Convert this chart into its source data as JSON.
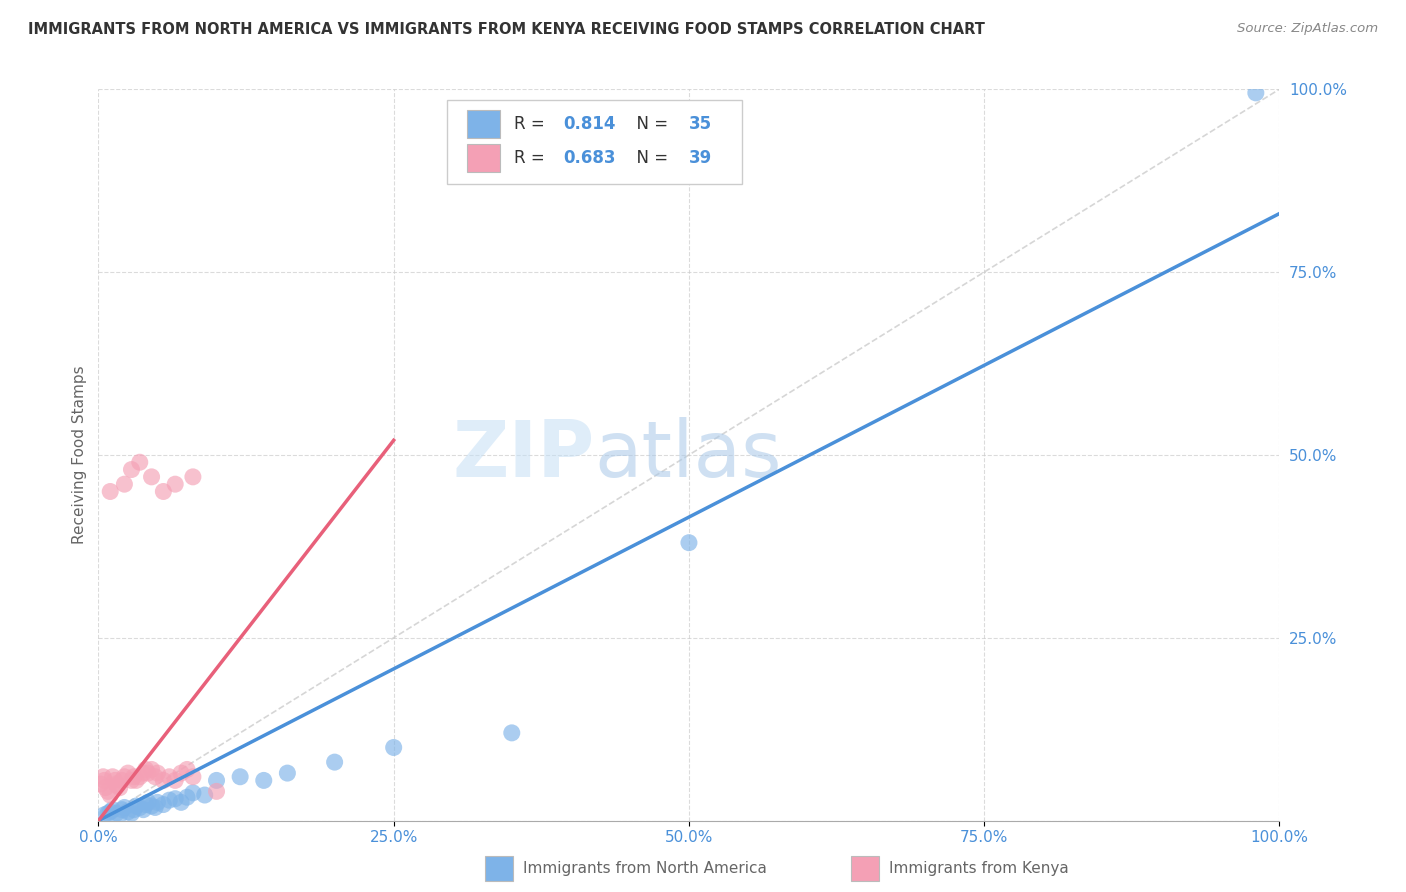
{
  "title": "IMMIGRANTS FROM NORTH AMERICA VS IMMIGRANTS FROM KENYA RECEIVING FOOD STAMPS CORRELATION CHART",
  "source": "Source: ZipAtlas.com",
  "xlabel_bottom": "Immigrants from North America",
  "xlabel_bottom2": "Immigrants from Kenya",
  "ylabel": "Receiving Food Stamps",
  "watermark_zip": "ZIP",
  "watermark_atlas": "atlas",
  "xlim": [
    0,
    1.0
  ],
  "ylim": [
    0,
    1.0
  ],
  "xticks": [
    0.0,
    0.25,
    0.5,
    0.75,
    1.0
  ],
  "yticks": [
    0.25,
    0.5,
    0.75,
    1.0
  ],
  "xtick_labels": [
    "0.0%",
    "25.0%",
    "50.0%",
    "75.0%",
    "100.0%"
  ],
  "ytick_labels_right": [
    "25.0%",
    "50.0%",
    "75.0%",
    "100.0%"
  ],
  "R_blue": 0.814,
  "N_blue": 35,
  "R_pink": 0.683,
  "N_pink": 39,
  "blue_color": "#7EB3E8",
  "pink_color": "#F4A0B5",
  "blue_line_color": "#4A90D9",
  "pink_line_color": "#E8607A",
  "grid_color": "#CCCCCC",
  "title_color": "#333333",
  "axis_label_color": "#666666",
  "axis_tick_color": "#4A90D9",
  "legend_R_color": "#4A90D9",
  "legend_N_color": "#4A90D9",
  "blue_scatter_x": [
    0.005,
    0.008,
    0.01,
    0.012,
    0.015,
    0.018,
    0.02,
    0.022,
    0.025,
    0.028,
    0.03,
    0.032,
    0.035,
    0.038,
    0.04,
    0.042,
    0.045,
    0.048,
    0.05,
    0.055,
    0.06,
    0.065,
    0.07,
    0.075,
    0.08,
    0.09,
    0.1,
    0.12,
    0.14,
    0.16,
    0.2,
    0.25,
    0.35,
    0.5,
    0.98
  ],
  "blue_scatter_y": [
    0.008,
    0.01,
    0.012,
    0.015,
    0.01,
    0.008,
    0.015,
    0.018,
    0.012,
    0.01,
    0.015,
    0.02,
    0.018,
    0.015,
    0.022,
    0.025,
    0.02,
    0.018,
    0.025,
    0.022,
    0.028,
    0.03,
    0.025,
    0.032,
    0.038,
    0.035,
    0.055,
    0.06,
    0.055,
    0.065,
    0.08,
    0.1,
    0.12,
    0.38,
    0.995
  ],
  "pink_scatter_x": [
    0.002,
    0.004,
    0.005,
    0.006,
    0.008,
    0.01,
    0.012,
    0.014,
    0.015,
    0.016,
    0.018,
    0.02,
    0.022,
    0.025,
    0.028,
    0.03,
    0.032,
    0.035,
    0.038,
    0.04,
    0.042,
    0.045,
    0.048,
    0.05,
    0.055,
    0.06,
    0.065,
    0.07,
    0.075,
    0.08,
    0.01,
    0.022,
    0.028,
    0.035,
    0.045,
    0.055,
    0.065,
    0.08,
    0.1
  ],
  "pink_scatter_y": [
    0.05,
    0.06,
    0.055,
    0.045,
    0.04,
    0.035,
    0.06,
    0.055,
    0.05,
    0.048,
    0.045,
    0.055,
    0.06,
    0.065,
    0.055,
    0.06,
    0.055,
    0.06,
    0.065,
    0.07,
    0.065,
    0.07,
    0.06,
    0.065,
    0.055,
    0.06,
    0.055,
    0.065,
    0.07,
    0.06,
    0.45,
    0.46,
    0.48,
    0.49,
    0.47,
    0.45,
    0.46,
    0.47,
    0.04
  ],
  "blue_line_x0": 0.0,
  "blue_line_x1": 1.0,
  "blue_line_y0": 0.0,
  "blue_line_y1": 0.83,
  "pink_line_x0": 0.0,
  "pink_line_x1": 0.25,
  "pink_line_y0": 0.0,
  "pink_line_y1": 0.52
}
